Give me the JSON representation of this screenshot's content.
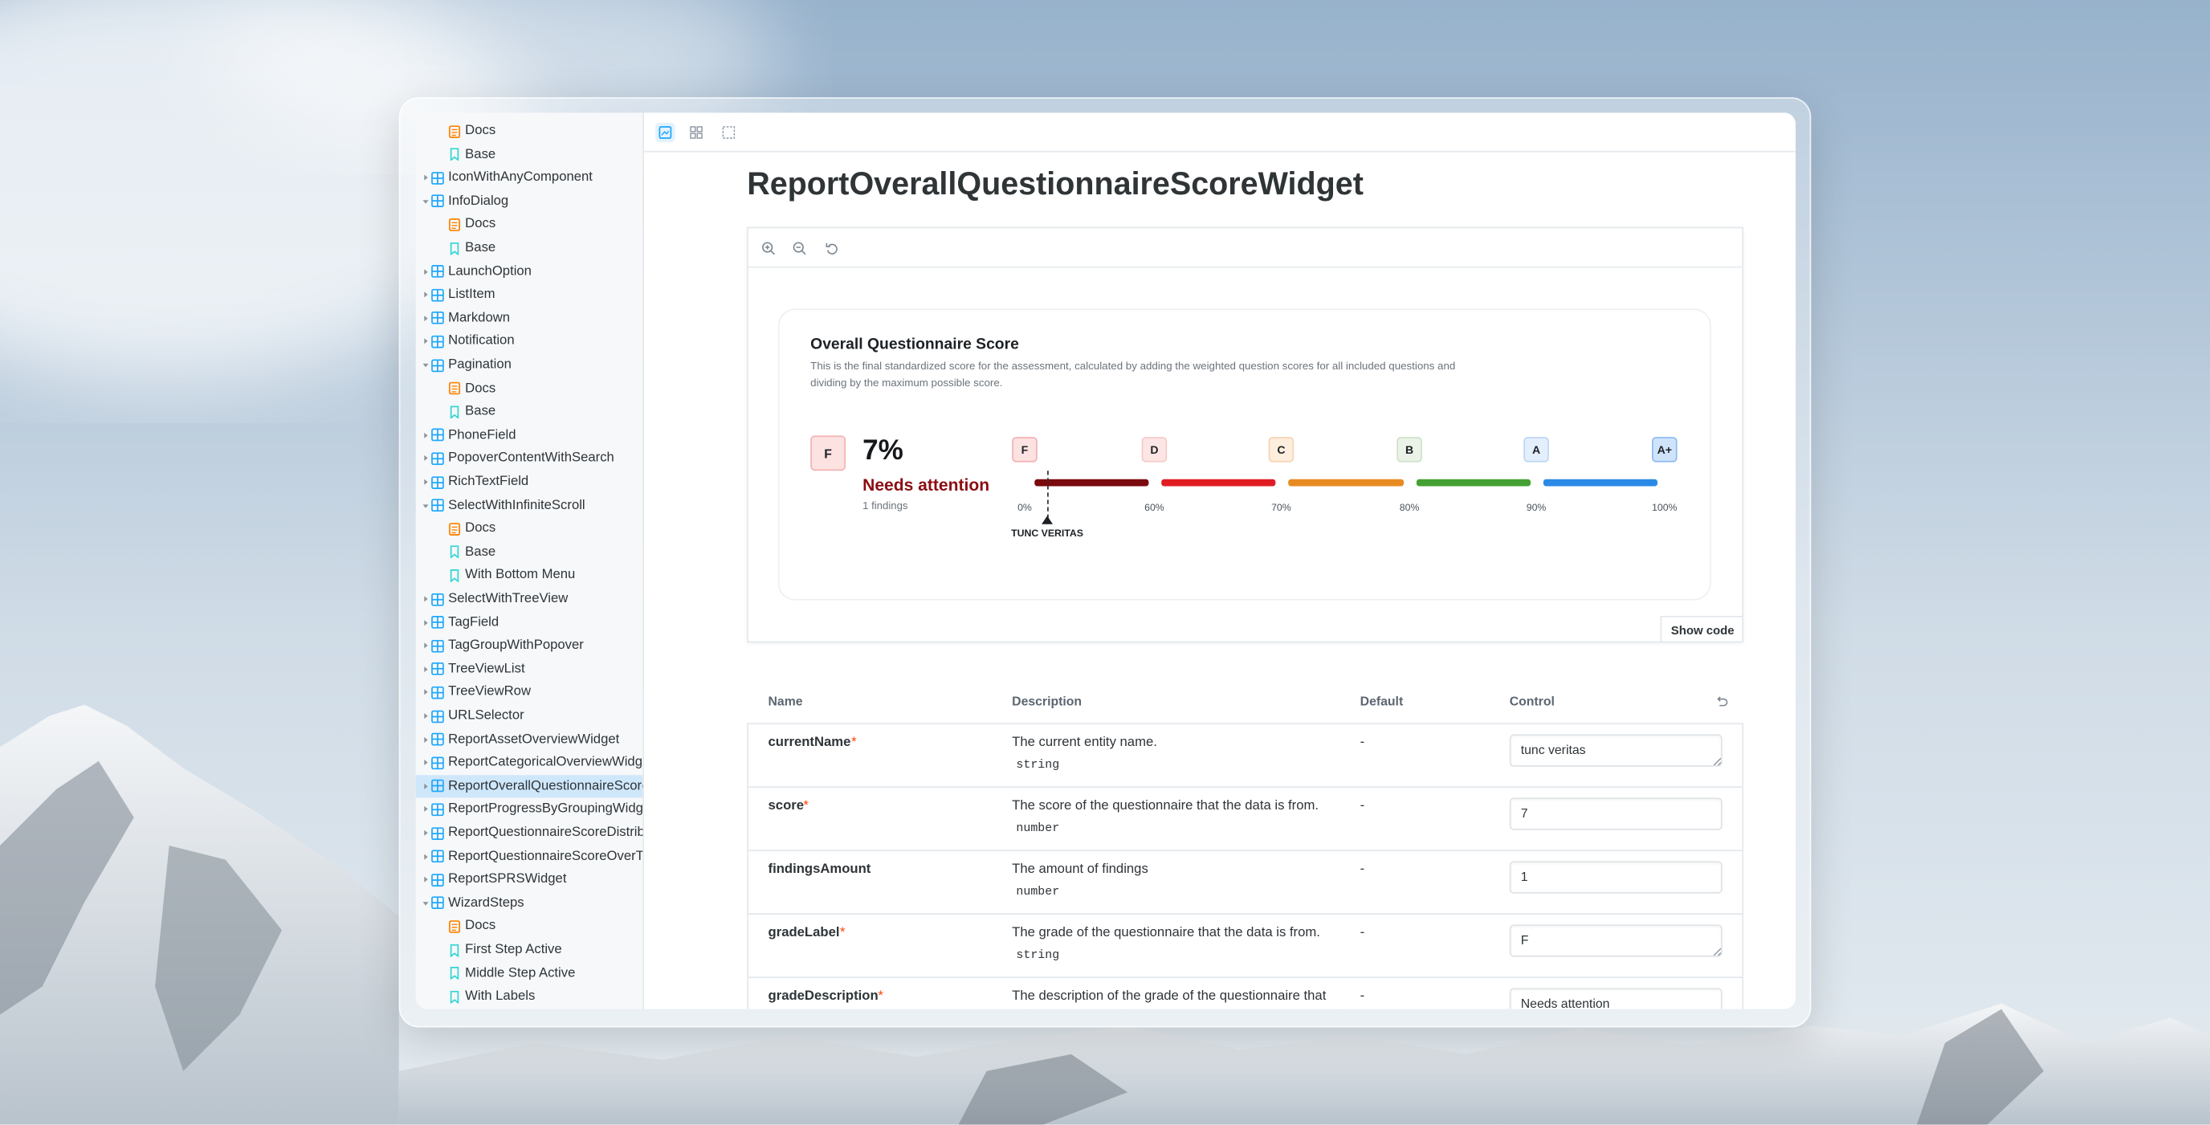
{
  "sidebar": {
    "groups": [
      {
        "docs": "Docs",
        "stories": [
          "Base"
        ]
      },
      {
        "label": "IconWithAnyComponent"
      },
      {
        "label": "InfoDialog",
        "docs": "Docs",
        "stories": [
          "Base"
        ]
      },
      {
        "label": "LaunchOption"
      },
      {
        "label": "ListItem"
      },
      {
        "label": "Markdown"
      },
      {
        "label": "Notification"
      },
      {
        "label": "Pagination",
        "docs": "Docs",
        "stories": [
          "Base"
        ]
      },
      {
        "label": "PhoneField"
      },
      {
        "label": "PopoverContentWithSearch"
      },
      {
        "label": "RichTextField"
      },
      {
        "label": "SelectWithInfiniteScroll",
        "docs": "Docs",
        "stories": [
          "Base",
          "With Bottom Menu"
        ]
      },
      {
        "label": "SelectWithTreeView"
      },
      {
        "label": "TagField"
      },
      {
        "label": "TagGroupWithPopover"
      },
      {
        "label": "TreeViewList"
      },
      {
        "label": "TreeViewRow"
      },
      {
        "label": "URLSelector"
      },
      {
        "label": "ReportAssetOverviewWidget"
      },
      {
        "label": "ReportCategoricalOverviewWidg"
      },
      {
        "label": "ReportOverallQuestionnaireScore",
        "selected": true
      },
      {
        "label": "ReportProgressByGroupingWidge"
      },
      {
        "label": "ReportQuestionnaireScoreDistribu"
      },
      {
        "label": "ReportQuestionnaireScoreOverTi"
      },
      {
        "label": "ReportSPRSWidget"
      },
      {
        "label": "WizardSteps",
        "docs": "Docs",
        "stories": [
          "First Step Active",
          "Middle Step Active",
          "With Labels"
        ]
      }
    ]
  },
  "main": {
    "title": "ReportOverallQuestionnaireScoreWidget"
  },
  "widget": {
    "title": "Overall Questionnaire Score",
    "description": "This is the final standardized score for the assessment, calculated by adding the weighted question scores for all included questions and dividing by the maximum possible score.",
    "grade": "F",
    "score": "7%",
    "grade_description": "Needs attention",
    "findings": "1 findings",
    "scale": [
      {
        "grade": "F",
        "tick": "0%"
      },
      {
        "grade": "D",
        "tick": "60%"
      },
      {
        "grade": "C",
        "tick": "70%"
      },
      {
        "grade": "B",
        "tick": "80%"
      },
      {
        "grade": "A",
        "tick": "90%"
      },
      {
        "grade": "A+",
        "tick": "100%"
      }
    ],
    "marker": "TUNC VERITAS"
  },
  "show_code": "Show code",
  "table": {
    "headers": [
      "Name",
      "Description",
      "Default",
      "Control"
    ],
    "rows": [
      {
        "name": "currentName",
        "required": "*",
        "description": "The current entity name.",
        "type": "string",
        "default": "-",
        "control": "tunc veritas"
      },
      {
        "name": "score",
        "required": "*",
        "description": "The score of the questionnaire that the data is from.",
        "type": "number",
        "default": "-",
        "control": "7"
      },
      {
        "name": "findingsAmount",
        "description": "The amount of findings",
        "type": "number",
        "default": "-",
        "control": "1"
      },
      {
        "name": "gradeLabel",
        "required": "*",
        "description": "The grade of the questionnaire that the data is from.",
        "type": "string",
        "default": "-",
        "control": "F"
      },
      {
        "name": "gradeDescription",
        "required": "*",
        "description": "The description of the grade of the questionnaire that",
        "default": "-",
        "control": "Needs attention"
      }
    ]
  }
}
